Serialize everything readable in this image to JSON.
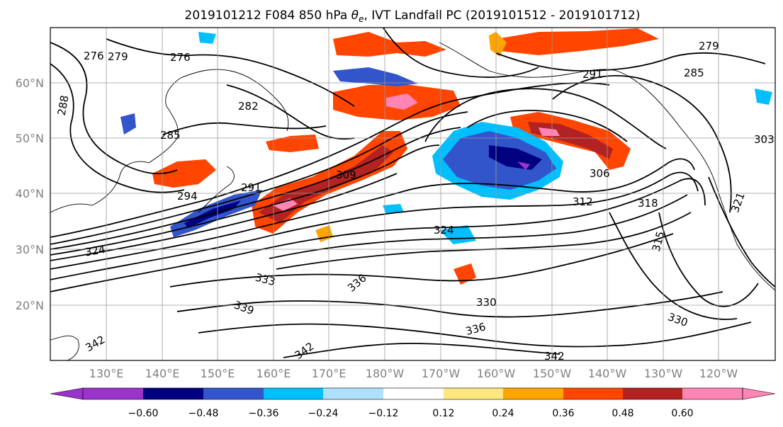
{
  "figure": {
    "title_parts": {
      "prefix": "2019101212 F084 850 hPa ",
      "theta": "θ",
      "sub": "e",
      "suffix": ", IVT Landfall PC (2019101512 - 2019101712)"
    }
  },
  "map": {
    "lat_labels": [
      "60°N",
      "50°N",
      "40°N",
      "30°N",
      "20°N"
    ],
    "lon_labels": [
      "130°E",
      "140°E",
      "150°E",
      "160°E",
      "170°E",
      "180°W",
      "170°W",
      "160°W",
      "150°W",
      "140°W",
      "130°W",
      "120°W"
    ],
    "contour_labels": [
      "276",
      "279",
      "276",
      "282",
      "285",
      "288",
      "294",
      "291",
      "309",
      "306",
      "312",
      "291",
      "285",
      "279",
      "303",
      "315",
      "318",
      "321",
      "324",
      "333",
      "336",
      "339",
      "342",
      "342",
      "330",
      "336",
      "342",
      "330",
      "324"
    ]
  },
  "colorbar": {
    "colors": [
      "#9933cc",
      "#000080",
      "#3355cc",
      "#00bfff",
      "#b0e0ff",
      "#ffffff",
      "#ffe680",
      "#ffa500",
      "#ff4500",
      "#b22222",
      "#ff85b4"
    ],
    "tick_labels": [
      "−0.60",
      "−0.48",
      "−0.36",
      "−0.24",
      "−0.12",
      "0.12",
      "0.24",
      "0.36",
      "0.48",
      "0.60"
    ]
  },
  "colors": {
    "negative_core": "#000080",
    "negative": "#3355cc",
    "negative_weak": "#00bfff",
    "positive_weak": "#ffa500",
    "positive": "#ff4500",
    "positive_strong": "#b22222",
    "positive_core": "#ff85b4",
    "grid": "#9a9a9a",
    "label_gray": "#808080"
  }
}
